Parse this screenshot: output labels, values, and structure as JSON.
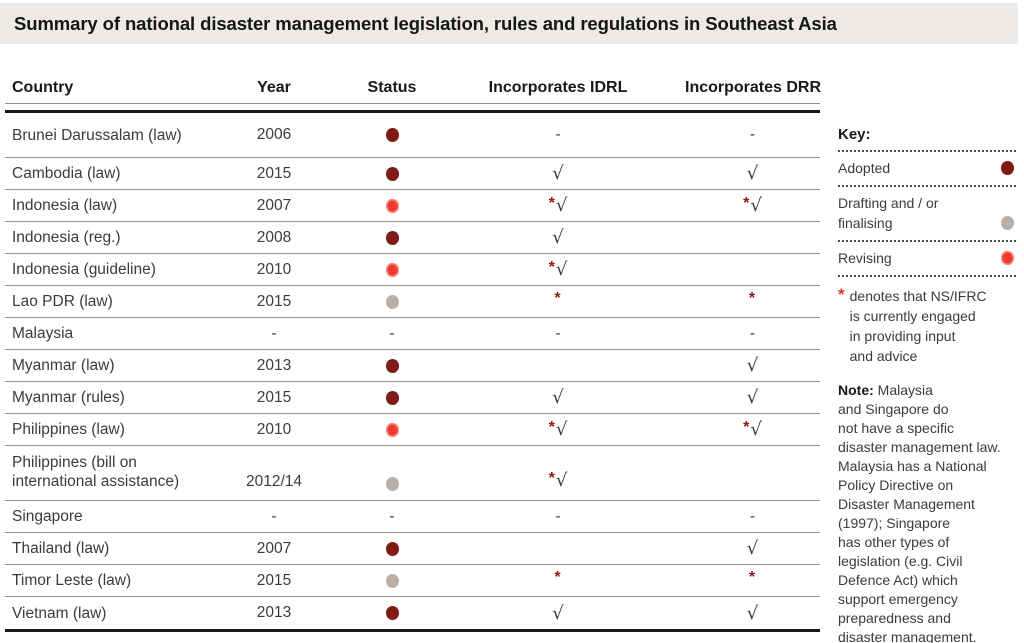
{
  "title": "Summary of national disaster management legislation, rules and regulations in Southeast Asia",
  "table": {
    "columns": {
      "country": "Country",
      "year": "Year",
      "status": "Status",
      "idrl": "Incorporates IDRL",
      "drr": "Incorporates DRR"
    },
    "rows": [
      {
        "country": "Brunei Darussalam (law)",
        "year": "2006",
        "status": "adopted",
        "idrl": "-",
        "drr": "-"
      },
      {
        "country": "Cambodia (law)",
        "year": "2015",
        "status": "adopted",
        "idrl": "√",
        "drr": "√"
      },
      {
        "country": "Indonesia (law)",
        "year": "2007",
        "status": "revising",
        "idrl": "*√",
        "drr": "*√"
      },
      {
        "country": "Indonesia (reg.)",
        "year": "2008",
        "status": "adopted",
        "idrl": "√",
        "drr": ""
      },
      {
        "country": "Indonesia (guideline)",
        "year": "2010",
        "status": "revising",
        "idrl": "*√",
        "drr": ""
      },
      {
        "country": "Lao PDR (law)",
        "year": "2015",
        "status": "drafting",
        "idrl": "*",
        "drr": "*"
      },
      {
        "country": "Malaysia",
        "year": "-",
        "status": "-",
        "idrl": "-",
        "drr": "-"
      },
      {
        "country": "Myanmar (law)",
        "year": "2013",
        "status": "adopted",
        "idrl": "",
        "drr": "√"
      },
      {
        "country": "Myanmar (rules)",
        "year": "2015",
        "status": "adopted",
        "idrl": "√",
        "drr": "√"
      },
      {
        "country": "Philippines (law)",
        "year": "2010",
        "status": "revising",
        "idrl": "*√",
        "drr": "*√"
      },
      {
        "country": "Philippines (bill on\ninternational assistance)",
        "year": "2012/14",
        "status": "drafting",
        "idrl": "*√",
        "drr": "",
        "tall": true
      },
      {
        "country": "Singapore",
        "year": "-",
        "status": "-",
        "idrl": "-",
        "drr": "-"
      },
      {
        "country": "Thailand (law)",
        "year": "2007",
        "status": "adopted",
        "idrl": "",
        "drr": "√"
      },
      {
        "country": "Timor Leste (law)",
        "year": "2015",
        "status": "drafting",
        "idrl": "*",
        "drr": "*"
      },
      {
        "country": "Vietnam (law)",
        "year": "2013",
        "status": "adopted",
        "idrl": "√",
        "drr": "√"
      }
    ]
  },
  "key": {
    "title": "Key:",
    "items": [
      {
        "label": "Adopted",
        "status": "adopted"
      },
      {
        "label": "Drafting and / or\nfinalising",
        "status": "drafting"
      },
      {
        "label": "Revising",
        "status": "revising"
      }
    ],
    "star_note": {
      "star": "*",
      "lines": [
        "denotes that NS/IFRC",
        "is currently engaged",
        "in providing input",
        "and advice"
      ]
    }
  },
  "note": {
    "label": "Note:",
    "lines": [
      "Malaysia",
      "and Singapore do",
      "not have a specific",
      "disaster management law.",
      "Malaysia has a National",
      "Policy Directive on",
      "Disaster Management",
      "(1997); Singapore",
      "has other types of",
      "legislation (e.g. Civil",
      "Defence Act) which",
      "support emergency",
      "preparedness and",
      "disaster management."
    ]
  },
  "glyphs": {
    "check": "√",
    "star": "*",
    "dash": "-"
  },
  "colors": {
    "title_band_bg": "#EDEAE8",
    "adopted_dot": "#7E1A12",
    "drafting_dot": "#B9AFA6",
    "revising_dot": "#EF3B2D",
    "table_star": "#8E1A10",
    "key_star": "#E6382A",
    "row_text": "#3B3B3A",
    "heading_text": "#191918",
    "thin_rule": "#8F8F8F",
    "thick_rule": "#191918"
  }
}
